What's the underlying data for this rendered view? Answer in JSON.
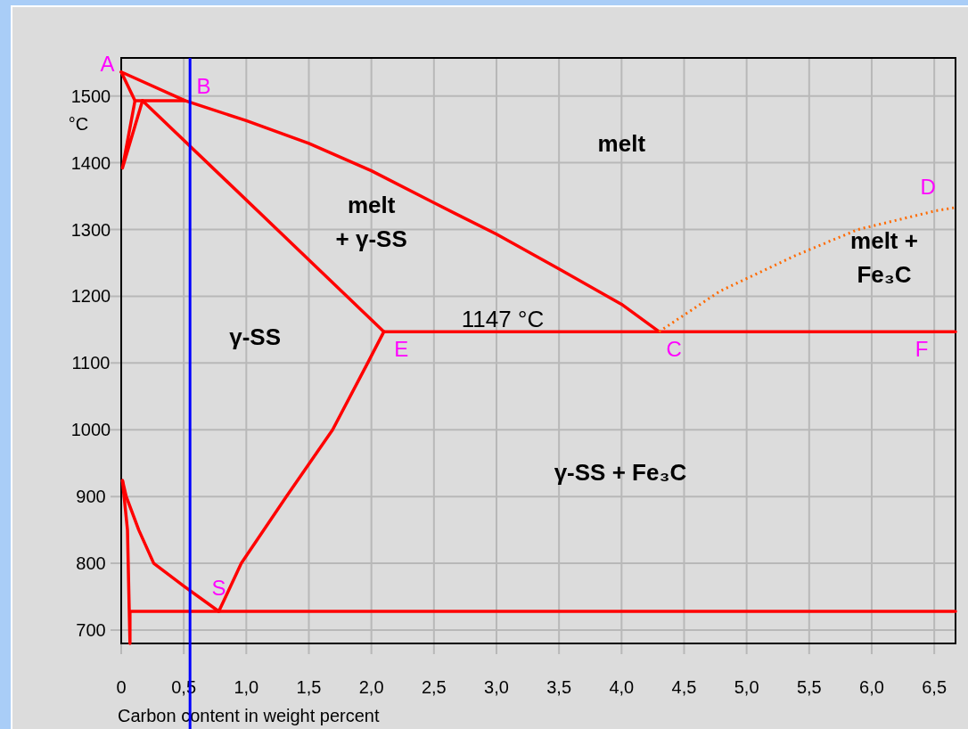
{
  "chart_data": {
    "type": "line",
    "xlabel": "Carbon content in weight percent",
    "ylabel": "°C",
    "xlim": [
      0,
      6.67
    ],
    "ylim": [
      680,
      1557
    ],
    "xticks": [
      0,
      {
        "value": 0.5,
        "label": "0,5"
      },
      {
        "value": 1,
        "label": "1,0"
      },
      {
        "value": 1.5,
        "label": "1,5"
      },
      {
        "value": 2,
        "label": "2,0"
      },
      {
        "value": 2.5,
        "label": "2,5"
      },
      {
        "value": 3,
        "label": "3,0"
      },
      {
        "value": 3.5,
        "label": "3,5"
      },
      {
        "value": 4,
        "label": "4,0"
      },
      {
        "value": 4.5,
        "label": "4,5"
      },
      {
        "value": 5,
        "label": "5,0"
      },
      {
        "value": 5.5,
        "label": "5,5"
      },
      {
        "value": 6,
        "label": "6,0"
      },
      {
        "value": 6.5,
        "label": "6,5"
      }
    ],
    "yticks": [
      700,
      800,
      900,
      1000,
      1100,
      1200,
      1300,
      1400,
      1500
    ],
    "grid": true,
    "marker": "none",
    "line_style": "solid",
    "series": [
      {
        "color": "#ff0000",
        "x": [
          0,
          0.51,
          1.0,
          1.5,
          2.0,
          2.5,
          3.0,
          3.5,
          4.0,
          4.3
        ],
        "values": [
          1536,
          1493,
          1463,
          1429,
          1388,
          1340,
          1293,
          1241,
          1188,
          1147
        ]
      },
      {
        "color": "#ff0000",
        "x": [
          0,
          0.11,
          0.51
        ],
        "values": [
          1536,
          1493,
          1493
        ]
      },
      {
        "color": "#ff0000",
        "x": [
          0.11,
          0.01,
          0.17
        ],
        "values": [
          1493,
          1392,
          1493
        ]
      },
      {
        "color": "#ff0000",
        "x": [
          0.17,
          2.1,
          6.67
        ],
        "values": [
          1493,
          1147,
          1147
        ]
      },
      {
        "color": "#ff0000",
        "x": [
          2.1,
          1.97,
          1.69,
          1.32,
          0.96,
          0.78
        ],
        "values": [
          1147,
          1100,
          1000,
          900,
          800,
          728
        ]
      },
      {
        "color": "#ff0000",
        "x": [
          0.01,
          0.04,
          0.14,
          0.26,
          0.5,
          0.78
        ],
        "values": [
          924,
          900,
          850,
          800,
          766,
          728
        ]
      },
      {
        "color": "#ff0000",
        "x": [
          0.01,
          0.05,
          0.07,
          0.07,
          6.67
        ],
        "values": [
          924,
          850,
          680,
          728,
          728
        ]
      },
      {
        "color": "#ff6a00",
        "line_style": "dotted",
        "x": [
          4.3,
          4.79,
          5.39,
          5.89,
          6.51,
          6.67
        ],
        "values": [
          1147,
          1208,
          1261,
          1300,
          1328,
          1333
        ]
      }
    ],
    "ref_lines": [
      {
        "axis": "x",
        "value": 0.55,
        "color": "#0000ff"
      }
    ],
    "annotations": [
      "A",
      "B",
      "C",
      "D",
      "E",
      "F",
      "S",
      "melt",
      "melt\n+ γ-SS",
      "γ-SS",
      "1147 °C",
      "melt +\nFe₃C",
      "γ-SS + Fe₃C"
    ]
  }
}
